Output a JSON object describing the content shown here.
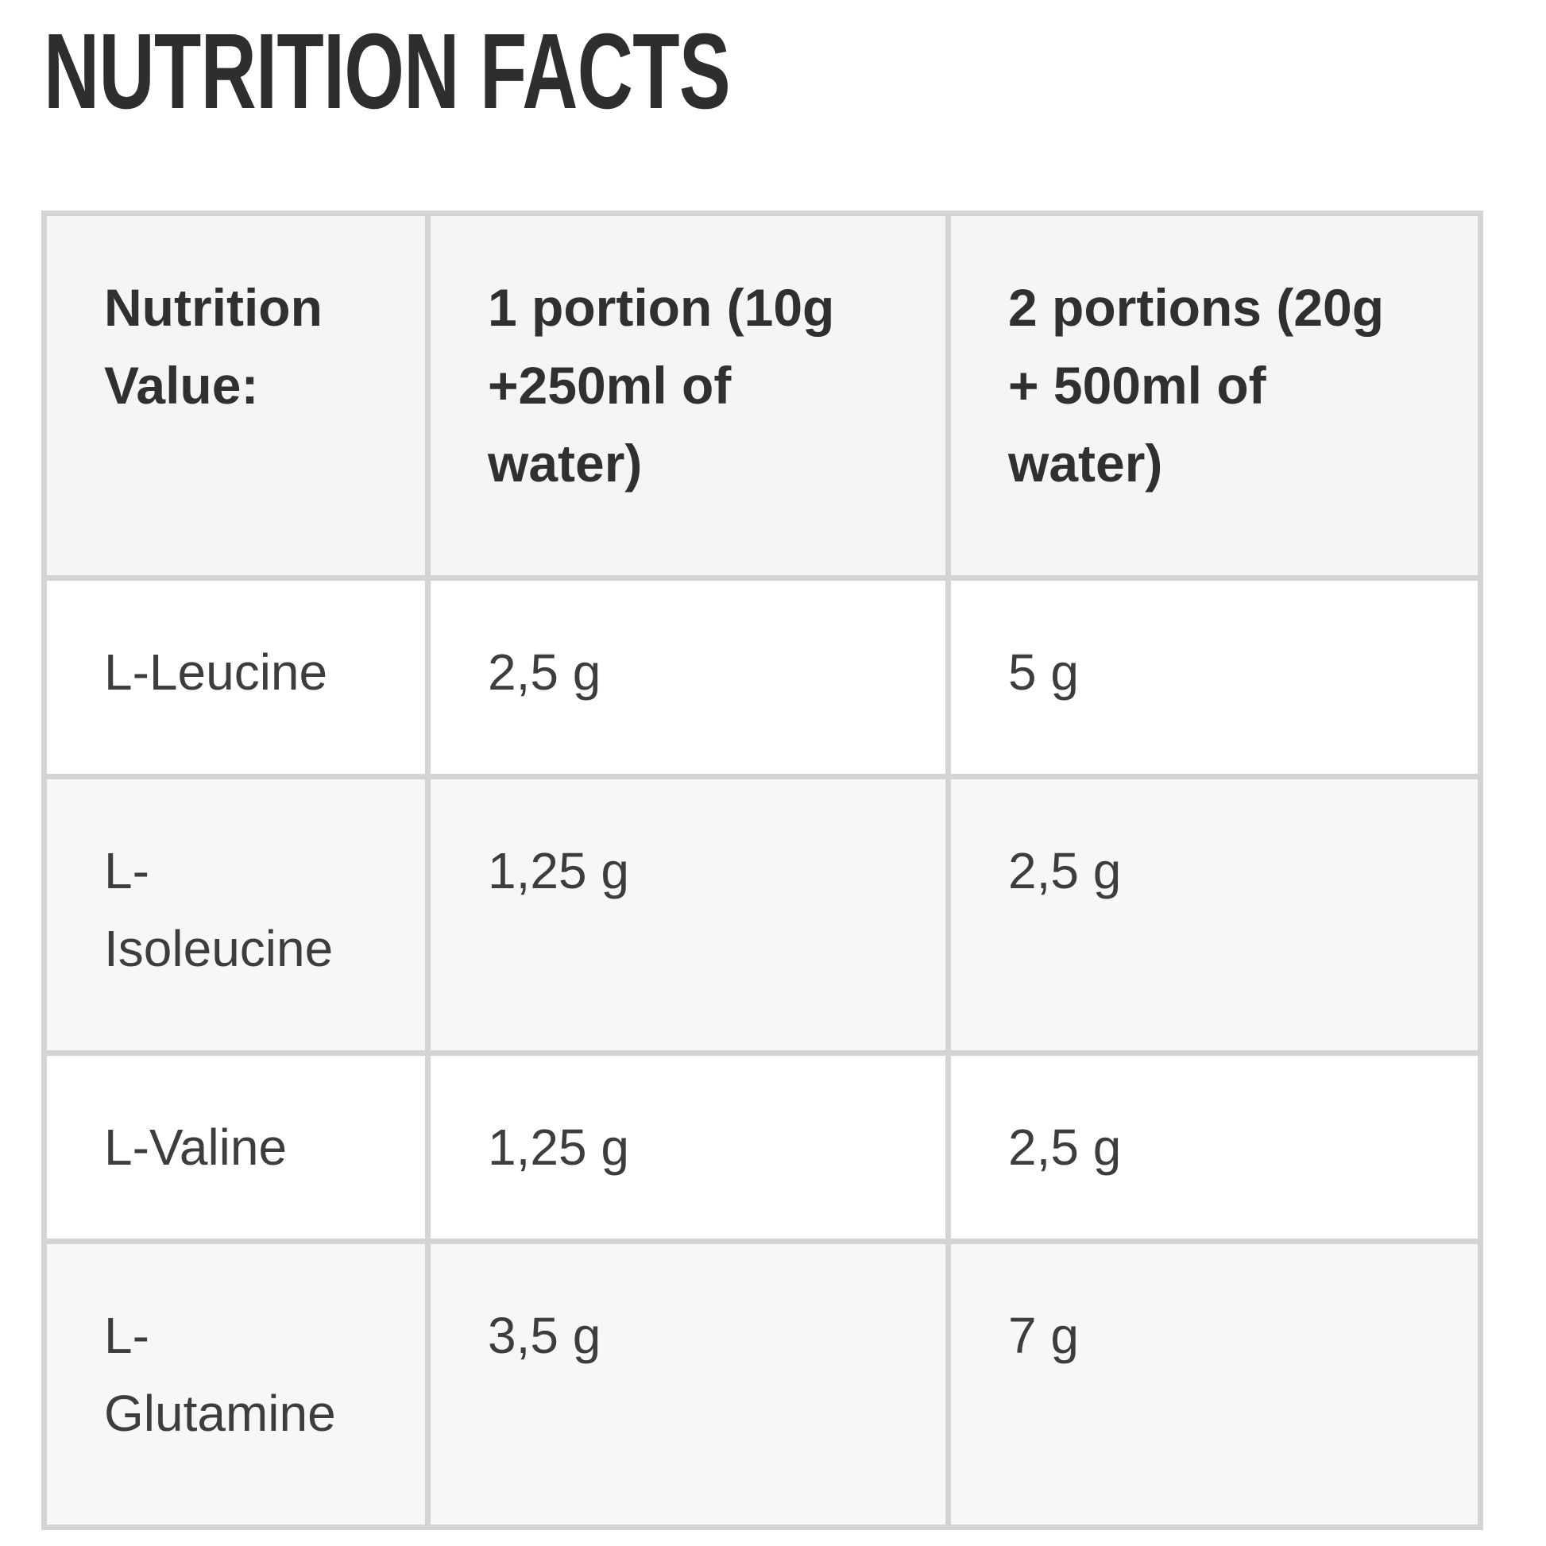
{
  "page": {
    "title": "NUTRITION FACTS"
  },
  "table": {
    "columns": [
      {
        "label": "Nutrition\nValue:"
      },
      {
        "label": "1 portion (10g\n+250ml of\nwater)"
      },
      {
        "label": "2 portions (20g\n+ 500ml of\nwater)"
      }
    ],
    "rows": [
      {
        "name": "L-Leucine",
        "portion1": "2,5 g",
        "portion2": "5 g"
      },
      {
        "name": "L-\nIsoleucine",
        "portion1": "1,25 g",
        "portion2": "2,5 g"
      },
      {
        "name": "L-Valine",
        "portion1": "1,25 g",
        "portion2": "2,5 g"
      },
      {
        "name": "L-\nGlutamine",
        "portion1": "3,5 g",
        "portion2": "7 g"
      }
    ]
  },
  "colors": {
    "title_color": "#2e2e2e",
    "header_text": "#303030",
    "body_text": "#3d3d3d",
    "border_color": "#d4d4d4",
    "header_bg": "#f5f5f5",
    "stripe_bg": "#f7f7f7",
    "page_bg": "#ffffff"
  }
}
